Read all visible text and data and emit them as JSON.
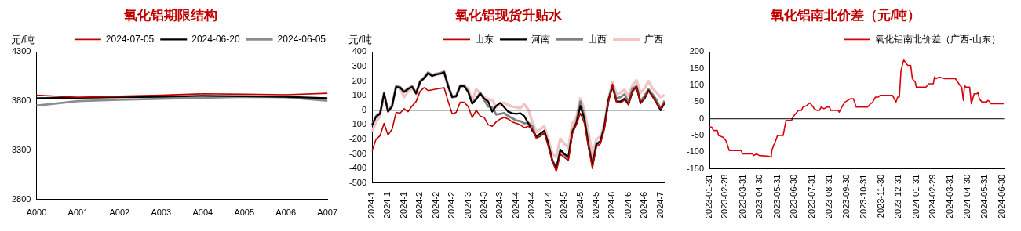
{
  "chart_data": [
    {
      "type": "line",
      "title": "氧化铝期限结构",
      "ylabel": "元/吨",
      "categories": [
        "A000",
        "A001",
        "A002",
        "A003",
        "A004",
        "A005",
        "A006",
        "A007"
      ],
      "ylim": [
        2800,
        4300
      ],
      "yticks": [
        2800,
        3300,
        3800,
        4300
      ],
      "legend": "top",
      "series": [
        {
          "name": "2024-07-05",
          "color": "#c00000",
          "values": [
            3860,
            3840,
            3850,
            3860,
            3875,
            3870,
            3865,
            3880
          ]
        },
        {
          "name": "2024-06-20",
          "color": "#000000",
          "values": [
            3830,
            3835,
            3840,
            3845,
            3855,
            3850,
            3845,
            3830
          ]
        },
        {
          "name": "2024-06-05",
          "color": "#8c8c8c",
          "values": [
            3755,
            3800,
            3815,
            3825,
            3835,
            3845,
            3840,
            3805
          ]
        }
      ]
    },
    {
      "type": "line",
      "title": "氧化铝现货升贴水",
      "ylabel": "元/吨",
      "categories": [
        "2024-1",
        null,
        null,
        null,
        "2024-1",
        null,
        null,
        null,
        "2024-1",
        null,
        null,
        null,
        "2024-2",
        null,
        null,
        null,
        "2024-2",
        null,
        null,
        null,
        "2024-2",
        null,
        null,
        null,
        "2024-3",
        null,
        null,
        null,
        "2024-3",
        null,
        null,
        null,
        "2024-3",
        null,
        null,
        null,
        "2024-4",
        null,
        null,
        null,
        "2024-4",
        null,
        null,
        null,
        "2024-4",
        null,
        null,
        null,
        "2024-5",
        null,
        null,
        null,
        "2024-5",
        null,
        null,
        null,
        "2024-5",
        null,
        null,
        null,
        "2024-6",
        null,
        null,
        null,
        "2024-6",
        null,
        null,
        null,
        "2024-6",
        null,
        null,
        null,
        "2024-7",
        null
      ],
      "ylim": [
        -500,
        400
      ],
      "yticks": [
        -500,
        -400,
        -300,
        -200,
        -100,
        0,
        100,
        200,
        300,
        400
      ],
      "legend": "top",
      "series": [
        {
          "name": "山东",
          "color": "#c00000",
          "values": [
            -280,
            -200,
            -175,
            -90,
            -170,
            -130,
            -15,
            -20,
            10,
            -10,
            30,
            60,
            130,
            155,
            135,
            140,
            145,
            150,
            155,
            60,
            -25,
            -15,
            55,
            55,
            25,
            -50,
            0,
            -40,
            -50,
            -100,
            -110,
            -80,
            -60,
            -50,
            -60,
            -80,
            -90,
            -100,
            -120,
            -110,
            -130,
            -190,
            -180,
            -155,
            -250,
            -350,
            -420,
            -300,
            -325,
            -345,
            -160,
            -100,
            -20,
            -90,
            -250,
            -400,
            -250,
            -230,
            -130,
            60,
            180,
            60,
            50,
            70,
            40,
            130,
            160,
            45,
            90,
            130,
            95,
            50,
            10,
            55
          ]
        },
        {
          "name": "河南",
          "color": "#000000",
          "values": [
            -105,
            -45,
            -25,
            115,
            -10,
            25,
            160,
            155,
            125,
            145,
            160,
            115,
            195,
            220,
            255,
            235,
            245,
            250,
            260,
            165,
            90,
            95,
            165,
            165,
            125,
            45,
            75,
            115,
            80,
            60,
            -10,
            30,
            50,
            20,
            -10,
            -20,
            -25,
            -20,
            -40,
            -90,
            -140,
            -180,
            -160,
            -140,
            -230,
            -350,
            -400,
            -270,
            -300,
            -320,
            -150,
            -90,
            30,
            -60,
            -240,
            -380,
            -235,
            -215,
            -110,
            70,
            165,
            60,
            60,
            80,
            40,
            130,
            160,
            50,
            80,
            135,
            95,
            50,
            0,
            50
          ]
        },
        {
          "name": "山西",
          "color": "#808080",
          "values": [
            -100,
            -40,
            -20,
            120,
            -5,
            30,
            165,
            160,
            130,
            150,
            165,
            120,
            200,
            225,
            260,
            240,
            250,
            255,
            265,
            170,
            95,
            100,
            170,
            170,
            130,
            50,
            80,
            120,
            70,
            25,
            20,
            -30,
            -25,
            -20,
            -40,
            -55,
            -70,
            -75,
            -90,
            -85,
            -110,
            -190,
            -170,
            -145,
            -235,
            -340,
            -400,
            -280,
            -305,
            -330,
            -140,
            -80,
            60,
            -50,
            -230,
            -370,
            -230,
            -210,
            -110,
            70,
            170,
            80,
            90,
            110,
            60,
            150,
            165,
            60,
            100,
            145,
            110,
            70,
            10,
            65
          ]
        },
        {
          "name": "广西",
          "color": "#f2c4c4",
          "values": [
            -150,
            -80,
            -40,
            100,
            -10,
            40,
            160,
            150,
            90,
            130,
            150,
            110,
            195,
            220,
            250,
            235,
            245,
            250,
            255,
            160,
            85,
            95,
            165,
            165,
            150,
            60,
            145,
            115,
            90,
            75,
            70,
            20,
            40,
            50,
            35,
            25,
            20,
            15,
            40,
            5,
            -80,
            -150,
            -130,
            -110,
            -200,
            -300,
            -320,
            -195,
            -230,
            -260,
            -90,
            -50,
            80,
            0,
            -150,
            -310,
            -200,
            -180,
            -90,
            80,
            195,
            110,
            120,
            140,
            100,
            170,
            205,
            120,
            150,
            200,
            150,
            120,
            90,
            105
          ]
        }
      ]
    },
    {
      "type": "line",
      "title": "氧化铝南北价差（元/吨）",
      "xlim": [
        "2023-01-31",
        "2024-07-04"
      ],
      "xticks": [
        "2023-01-31",
        "2023-02-28",
        "2023-03-31",
        "2023-04-30",
        "2023-05-31",
        "2023-06-30",
        "2023-07-31",
        "2023-08-31",
        "2023-09-30",
        "2023-10-31",
        "2023-11-30",
        "2023-12-31",
        "2024-01-31",
        "2024-02-29",
        "2024-03-31",
        "2024-04-30",
        "2024-05-31",
        "2024-06-30"
      ],
      "ylim": [
        -150,
        200
      ],
      "yticks": [
        -150,
        -100,
        -50,
        0,
        50,
        100,
        150,
        200
      ],
      "legend": "top",
      "x": [
        "2023-01-31",
        "2023-02-04",
        "2023-02-07",
        "2023-02-14",
        "2023-02-16",
        "2023-02-24",
        "2023-03-01",
        "2023-03-04",
        "2023-03-07",
        "2023-03-28",
        "2023-03-30",
        "2023-04-17",
        "2023-04-19",
        "2023-04-24",
        "2023-04-29",
        "2023-05-16",
        "2023-05-20",
        "2023-05-21",
        "2023-05-24",
        "2023-05-27",
        "2023-05-31",
        "2023-06-10",
        "2023-06-15",
        "2023-06-25",
        "2023-06-27",
        "2023-07-02",
        "2023-07-07",
        "2023-07-12",
        "2023-07-15",
        "2023-07-22",
        "2023-07-27",
        "2023-07-31",
        "2023-08-04",
        "2023-08-09",
        "2023-08-13",
        "2023-08-16",
        "2023-08-21",
        "2023-08-26",
        "2023-08-31",
        "2023-09-02",
        "2023-09-15",
        "2023-09-17",
        "2023-09-20",
        "2023-09-23",
        "2023-09-27",
        "2023-10-07",
        "2023-10-12",
        "2023-10-17",
        "2023-11-06",
        "2023-11-11",
        "2023-11-15",
        "2023-11-20",
        "2023-11-25",
        "2023-11-28",
        "2023-12-20",
        "2023-12-23",
        "2023-12-26",
        "2023-12-29",
        "2024-01-01",
        "2024-01-04",
        "2024-01-09",
        "2024-01-11",
        "2024-01-16",
        "2024-01-21",
        "2024-01-24",
        "2024-01-29",
        "2024-01-31",
        "2024-02-17",
        "2024-02-22",
        "2024-03-01",
        "2024-03-03",
        "2024-03-06",
        "2024-03-11",
        "2024-03-21",
        "2024-04-09",
        "2024-04-17",
        "2024-04-20",
        "2024-04-23",
        "2024-04-25",
        "2024-04-27",
        "2024-05-04",
        "2024-05-07",
        "2024-05-12",
        "2024-05-17",
        "2024-05-19",
        "2024-05-21",
        "2024-05-26",
        "2024-06-03",
        "2024-06-05",
        "2024-06-08",
        "2024-06-10",
        "2024-07-03"
      ],
      "series": [
        {
          "name": "氧化铝南北价差（广西-山东）",
          "color": "#d9000d",
          "values": [
            -25,
            -25,
            -35,
            -35,
            -50,
            -55,
            -65,
            -80,
            -95,
            -95,
            -105,
            -105,
            -110,
            -105,
            -110,
            -112,
            -115,
            -95,
            -80,
            -70,
            -50,
            -50,
            -5,
            -5,
            5,
            15,
            25,
            25,
            35,
            40,
            48,
            40,
            30,
            25,
            25,
            35,
            30,
            35,
            35,
            25,
            25,
            20,
            30,
            40,
            50,
            60,
            60,
            35,
            35,
            45,
            50,
            65,
            65,
            70,
            70,
            60,
            50,
            65,
            65,
            145,
            178,
            170,
            160,
            160,
            120,
            110,
            95,
            95,
            105,
            105,
            125,
            120,
            125,
            120,
            120,
            100,
            95,
            55,
            100,
            95,
            95,
            45,
            75,
            75,
            80,
            60,
            50,
            50,
            55,
            52,
            45,
            45
          ]
        }
      ]
    }
  ]
}
